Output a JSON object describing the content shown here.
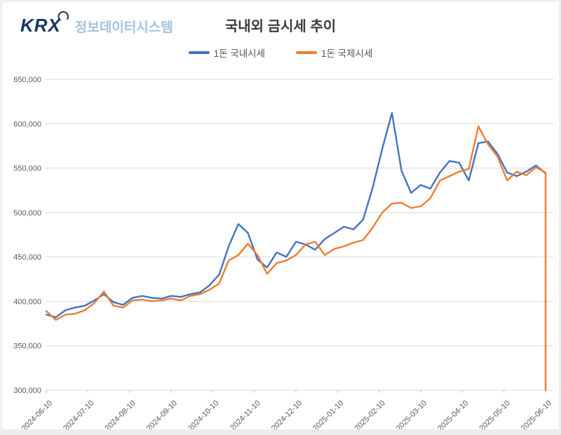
{
  "header": {
    "brand": "KRX",
    "brand_subtitle": "정보데이터시스템",
    "title": "국내외 금시세 추이"
  },
  "legend": [
    {
      "label": "1돈 국내시세",
      "color": "#4472C4"
    },
    {
      "label": "1돈 국제시세",
      "color": "#ED7D31"
    }
  ],
  "chart_data": {
    "type": "line",
    "title": "국내외 금시세 추이",
    "x_start": "2024-06-10",
    "x_end": "2025-06-10",
    "point_interval": "weekly",
    "x_labels": [
      "2024-06-10",
      "2024-07-10",
      "2024-08-10",
      "2024-09-10",
      "2024-10-10",
      "2024-11-10",
      "2024-12-10",
      "2025-01-10",
      "2025-02-10",
      "2025-03-10",
      "2025-04-10",
      "2025-05-10",
      "2025-06-10"
    ],
    "ylim": [
      300000,
      650000
    ],
    "y_ticks": [
      300000,
      350000,
      400000,
      450000,
      500000,
      550000,
      600000,
      650000
    ],
    "y_tick_labels": [
      "300,000",
      "350,000",
      "400,000",
      "450,000",
      "500,000",
      "550,000",
      "600,000",
      "650,000"
    ],
    "grid": "horizontal",
    "legend_position": "top",
    "series": [
      {
        "name": "1돈 국내시세",
        "color": "#4472C4",
        "values": [
          385000,
          382000,
          390000,
          393000,
          395000,
          401000,
          408000,
          399000,
          396000,
          404000,
          406000,
          404000,
          403000,
          406000,
          405000,
          408000,
          410000,
          418000,
          430000,
          462000,
          487000,
          477000,
          447000,
          438000,
          455000,
          450000,
          467000,
          464000,
          458000,
          470000,
          477000,
          484000,
          481000,
          492000,
          528000,
          572000,
          612000,
          547000,
          522000,
          531000,
          527000,
          545000,
          558000,
          556000,
          536000,
          578000,
          580000,
          566000,
          545000,
          541000,
          546000,
          553000,
          544000
        ]
      },
      {
        "name": "1돈 국제시세",
        "color": "#ED7D31",
        "values": [
          389000,
          379000,
          385000,
          386000,
          390000,
          398000,
          411000,
          395000,
          393000,
          401000,
          402000,
          400000,
          401000,
          403000,
          401000,
          406000,
          408000,
          413000,
          420000,
          446000,
          452000,
          465000,
          452000,
          431000,
          443000,
          446000,
          452000,
          464000,
          467000,
          452000,
          459000,
          462000,
          466000,
          469000,
          483000,
          500000,
          510000,
          511000,
          505000,
          507000,
          516000,
          536000,
          541000,
          546000,
          549000,
          597000,
          577000,
          563000,
          536000,
          546000,
          542000,
          551000,
          545000
        ],
        "end_drop_value": 300000
      }
    ]
  }
}
